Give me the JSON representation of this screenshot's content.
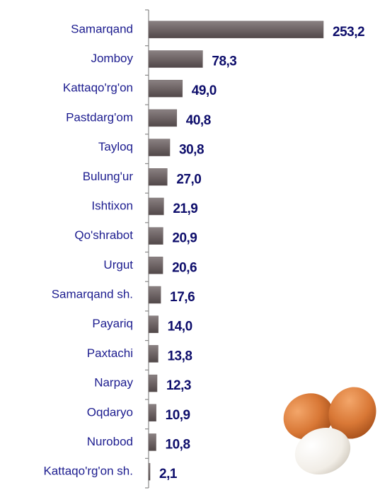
{
  "chart_data": {
    "type": "bar",
    "orientation": "horizontal",
    "categories": [
      "Samarqand",
      "Jomboy",
      "Kattaqo'rg'on",
      "Pastdarg'om",
      "Tayloq",
      "Bulung'ur",
      "Ishtixon",
      "Qo'shrabot",
      "Urgut",
      "Samarqand sh.",
      "Payariq",
      "Paxtachi",
      "Narpay",
      "Oqdaryo",
      "Nurobod",
      "Kattaqo'rg'on sh."
    ],
    "values": [
      253.2,
      78.3,
      49.0,
      40.8,
      30.8,
      27.0,
      21.9,
      20.9,
      20.6,
      17.6,
      14.0,
      13.8,
      12.3,
      10.9,
      10.8,
      2.1
    ],
    "value_labels": [
      "253,2",
      "78,3",
      "49,0",
      "40,8",
      "30,8",
      "27,0",
      "21,9",
      "20,9",
      "20,6",
      "17,6",
      "14,0",
      "13,8",
      "12,3",
      "10,9",
      "10,8",
      "2,1"
    ],
    "color": "#6e6465"
  }
}
